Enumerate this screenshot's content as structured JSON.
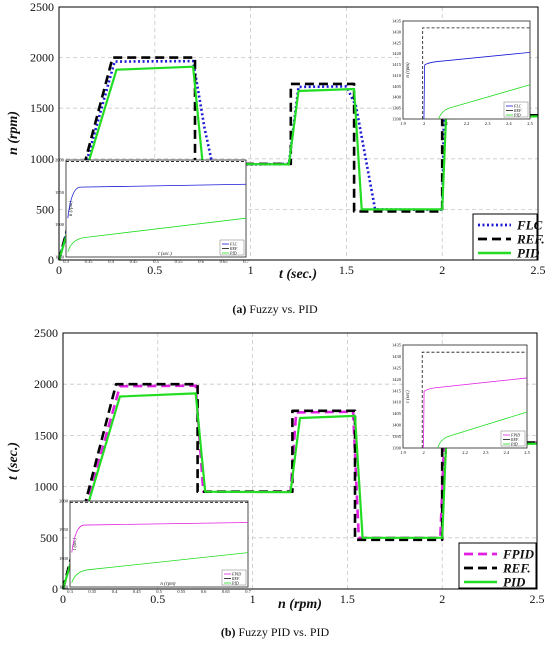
{
  "captions": [
    {
      "label": "(a)",
      "text": "Fuzzy vs. PID"
    },
    {
      "label": "(b)",
      "text": "Fuzzy PID vs. PID"
    }
  ],
  "chart_data": [
    {
      "type": "line",
      "xlabel": "t (sec.)",
      "ylabel": "n (rpm)",
      "xlim": [
        0,
        2.5
      ],
      "ylim": [
        0,
        2500
      ],
      "xticks": [
        "0",
        "0.5",
        "1",
        "1.5",
        "2",
        "2.5"
      ],
      "yticks": [
        "0",
        "500",
        "1000",
        "1500",
        "2000",
        "2500"
      ],
      "grid": true,
      "legend_position": "bottom-right",
      "series": [
        {
          "name": "FLC",
          "color": "#1a1ad6",
          "dash": "dot",
          "x": [
            0,
            0.29,
            0.7,
            0.76,
            0.8,
            1.0,
            1.2,
            1.25,
            1.5,
            1.55,
            1.65,
            1.98,
            2.0,
            2.01,
            2.5
          ],
          "y": [
            0,
            1960,
            1965,
            1300,
            950,
            945,
            950,
            1710,
            1715,
            1520,
            500,
            495,
            500,
            1420,
            1425
          ]
        },
        {
          "name": "REF.",
          "color": "#000000",
          "dash": "dash",
          "x": [
            0,
            0.28,
            0.71,
            0.71,
            1.21,
            1.21,
            1.54,
            1.54,
            2.0,
            2.0,
            2.5
          ],
          "y": [
            0,
            2000,
            2000,
            950,
            950,
            1740,
            1740,
            480,
            480,
            1430,
            1430
          ]
        },
        {
          "name": "PID",
          "color": "#22dd22",
          "dash": "solid",
          "x": [
            0,
            0.3,
            0.7,
            0.75,
            1.2,
            1.25,
            1.54,
            1.58,
            2.0,
            2.02,
            2.5
          ],
          "y": [
            0,
            1880,
            1910,
            950,
            945,
            1670,
            1690,
            500,
            500,
            1400,
            1420
          ]
        }
      ],
      "insets": [
        {
          "position": "left",
          "xticks": [
            "0.3",
            "0.35",
            "0.4",
            "0.45",
            "0.5",
            "0.55",
            "0.6",
            "0.65",
            "0.7"
          ],
          "yticks": [
            "1850",
            "1900",
            "1950",
            "2000"
          ],
          "xlabel": "t (sec.)",
          "ylabel": "n (rpm)",
          "legend": [
            "FLC",
            "REF.",
            "PID"
          ]
        },
        {
          "position": "right",
          "xticks": [
            "1.9",
            "2",
            "2.1",
            "2.2",
            "2.3",
            "2.4",
            "2.5"
          ],
          "yticks": [
            "1390",
            "1395",
            "1400",
            "1405",
            "1410",
            "1415",
            "1420",
            "1425",
            "1430",
            "1435"
          ],
          "xlabel": "",
          "ylabel": "n (rpm)",
          "legend": [
            "FLC",
            "REF.",
            "PID"
          ]
        }
      ]
    },
    {
      "type": "line",
      "xlabel": "n (rpm)",
      "ylabel": "t (sec.)",
      "xlim": [
        0,
        2.5
      ],
      "ylim": [
        0,
        2500
      ],
      "xticks": [
        "0",
        "0.5",
        "1",
        "1.5",
        "2",
        "2.5"
      ],
      "yticks": [
        "0",
        "500",
        "1000",
        "1500",
        "2000",
        "2500"
      ],
      "grid": true,
      "legend_position": "bottom-right",
      "series": [
        {
          "name": "FPID",
          "color": "#e020e0",
          "dash": "dash",
          "x": [
            0,
            0.3,
            0.7,
            0.74,
            1.2,
            1.23,
            1.53,
            1.56,
            1.99,
            2.01,
            2.5
          ],
          "y": [
            0,
            1980,
            1985,
            950,
            950,
            1725,
            1730,
            500,
            500,
            1425,
            1430
          ]
        },
        {
          "name": "REF.",
          "color": "#000000",
          "dash": "dash",
          "x": [
            0,
            0.28,
            0.71,
            0.71,
            1.21,
            1.21,
            1.54,
            1.54,
            2.0,
            2.0,
            2.5
          ],
          "y": [
            0,
            2000,
            2000,
            950,
            950,
            1740,
            1740,
            480,
            480,
            1430,
            1430
          ]
        },
        {
          "name": "PID",
          "color": "#22dd22",
          "dash": "solid",
          "x": [
            0,
            0.3,
            0.7,
            0.75,
            1.2,
            1.25,
            1.54,
            1.58,
            2.0,
            2.02,
            2.5
          ],
          "y": [
            0,
            1880,
            1910,
            950,
            945,
            1670,
            1690,
            500,
            500,
            1400,
            1420
          ]
        }
      ],
      "insets": [
        {
          "position": "left",
          "xticks": [
            "0.3",
            "0.35",
            "0.4",
            "0.45",
            "0.5",
            "0.55",
            "0.6",
            "0.65",
            "0.7"
          ],
          "yticks": [
            "1850",
            "1900",
            "1950",
            "2000"
          ],
          "xlabel": "n (rpm)",
          "ylabel": "t (sec)",
          "legend": [
            "FPID",
            "REF.",
            "PID"
          ]
        },
        {
          "position": "right",
          "xticks": [
            "1.9",
            "2",
            "2.1",
            "2.2",
            "2.3",
            "2.4",
            "2.5"
          ],
          "yticks": [
            "1390",
            "1395",
            "1400",
            "1405",
            "1410",
            "1415",
            "1420",
            "1425",
            "1430",
            "1435"
          ],
          "xlabel": "",
          "ylabel": "t (sec)",
          "legend": [
            "FPID",
            "REF.",
            "PID"
          ]
        }
      ]
    }
  ]
}
